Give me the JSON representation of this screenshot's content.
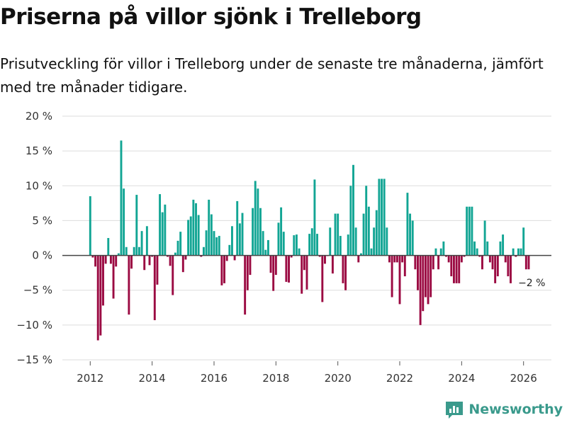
{
  "title": "Priserna på villor sjönk i Trelleborg",
  "subtitle": "Prisutveckling för villor i Trelleborg under de senaste tre månaderna, jämfört med tre månader tidigare.",
  "brand": {
    "name": "Newsworthy",
    "icon": "newsworthy-logo-icon",
    "color": "#3a9a8c"
  },
  "colors": {
    "positive": "#12a594",
    "negative": "#9b0a42",
    "zero_line": "#444444",
    "grid": "#dddddd"
  },
  "chart_data": {
    "type": "bar",
    "title": "Priserna på villor sjönk i Trelleborg",
    "xlabel": "",
    "ylabel": "",
    "ylim": [
      -15,
      20
    ],
    "xlim": [
      2011.1,
      2026.9
    ],
    "yticks": [
      20,
      15,
      10,
      5,
      0,
      -5,
      -10,
      -15
    ],
    "ytick_labels": [
      "20 %",
      "15 %",
      "10 %",
      "5 %",
      "0 %",
      "−5 %",
      "−10 %",
      "−15 %"
    ],
    "xticks": [
      2012,
      2014,
      2016,
      2018,
      2020,
      2022,
      2024,
      2026
    ],
    "xtick_labels": [
      "2012",
      "2014",
      "2016",
      "2018",
      "2020",
      "2022",
      "2024",
      "2026"
    ],
    "grid": true,
    "annotation": {
      "label": "−2 %",
      "x": 2026.1,
      "y": -2
    },
    "start": {
      "year": 2012,
      "month": 1
    },
    "values": [
      8.5,
      -0.3,
      -1.6,
      -12.2,
      -11.5,
      -7.2,
      -1.2,
      2.5,
      -1.2,
      -6.2,
      -1.6,
      0.3,
      16.5,
      9.6,
      1.2,
      -8.5,
      -1.9,
      1.2,
      8.7,
      1.2,
      3.5,
      -2.1,
      4.2,
      -1.4,
      -0.2,
      -9.3,
      -4.2,
      8.8,
      6.2,
      7.3,
      -0.2,
      -1.5,
      -5.7,
      0.4,
      2.1,
      3.4,
      -2.4,
      -0.6,
      5.1,
      5.6,
      8.0,
      7.5,
      5.8,
      -0.2,
      1.2,
      3.6,
      8.0,
      5.9,
      3.5,
      2.6,
      2.8,
      -4.3,
      -4.0,
      -0.8,
      1.5,
      4.2,
      -0.7,
      7.8,
      4.6,
      6.1,
      -8.5,
      -5.0,
      -2.8,
      6.8,
      10.7,
      9.6,
      6.8,
      3.5,
      0.8,
      2.2,
      -2.5,
      -5.1,
      -2.8,
      4.7,
      6.9,
      3.4,
      -3.8,
      -3.9,
      -0.3,
      2.9,
      3.0,
      1.0,
      -5.5,
      -2.1,
      -4.9,
      3.1,
      3.9,
      10.9,
      3.1,
      -0.2,
      -6.7,
      -1.2,
      -0.1,
      4.0,
      -2.6,
      6.0,
      6.0,
      2.8,
      -4.0,
      -5.0,
      3.0,
      10.0,
      13.0,
      4.0,
      -1.0,
      0.3,
      6.0,
      10.0,
      7.0,
      1.0,
      4.0,
      6.5,
      11.0,
      11.0,
      11.0,
      4.0,
      -1.0,
      -6.0,
      -1.0,
      -1.0,
      -7.0,
      -1.0,
      -3.0,
      9.0,
      6.0,
      5.0,
      -2.0,
      -5.0,
      -10.0,
      -8.0,
      -6.0,
      -7.0,
      -6.0,
      -2.0,
      1.0,
      -2.0,
      1.0,
      2.0,
      -0.2,
      -1.0,
      -3.0,
      -4.0,
      -4.0,
      -4.0,
      -1.0,
      -0.2,
      7.0,
      7.0,
      7.0,
      2.0,
      1.0,
      -0.2,
      -2.0,
      5.0,
      2.0,
      -1.0,
      -2.0,
      -4.0,
      -3.0,
      2.0,
      3.0,
      -1.0,
      -3.0,
      -4.0,
      1.0,
      -0.2,
      1.0,
      1.0,
      4.0,
      -2.0,
      -2.0
    ]
  }
}
